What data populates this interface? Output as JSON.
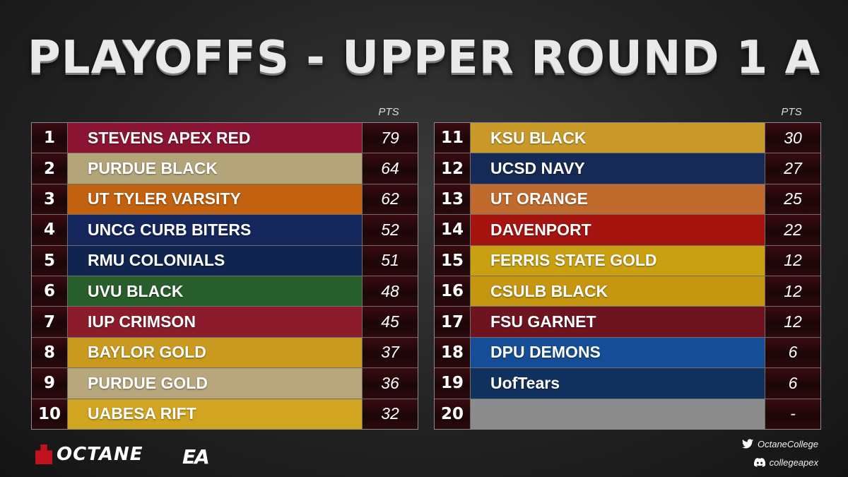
{
  "title": "PLAYOFFS - UPPER ROUND 1 A",
  "pts_label": "PTS",
  "left_table": [
    {
      "rank": "1",
      "team": "STEVENS APEX RED",
      "pts": "79",
      "color": "#8b1432"
    },
    {
      "rank": "2",
      "team": "PURDUE BLACK",
      "pts": "64",
      "color": "#b3a47a"
    },
    {
      "rank": "3",
      "team": "UT TYLER VARSITY",
      "pts": "62",
      "color": "#c2610f"
    },
    {
      "rank": "4",
      "team": "UNCG CURB BITERS",
      "pts": "52",
      "color": "#14265c"
    },
    {
      "rank": "5",
      "team": "RMU COLONIALS",
      "pts": "51",
      "color": "#10244f"
    },
    {
      "rank": "6",
      "team": "UVU BLACK",
      "pts": "48",
      "color": "#285e2b"
    },
    {
      "rank": "7",
      "team": "IUP CRIMSON",
      "pts": "45",
      "color": "#8c1c2c"
    },
    {
      "rank": "8",
      "team": "BAYLOR GOLD",
      "pts": "37",
      "color": "#c99a1f"
    },
    {
      "rank": "9",
      "team": "PURDUE GOLD",
      "pts": "36",
      "color": "#b8a77c"
    },
    {
      "rank": "10",
      "team": "UABESA RIFT",
      "pts": "32",
      "color": "#d2a520"
    }
  ],
  "right_table": [
    {
      "rank": "11",
      "team": "KSU BLACK",
      "pts": "30",
      "color": "#c99a2a"
    },
    {
      "rank": "12",
      "team": "UCSD NAVY",
      "pts": "27",
      "color": "#152b55"
    },
    {
      "rank": "13",
      "team": "UT ORANGE",
      "pts": "25",
      "color": "#c06b2d"
    },
    {
      "rank": "14",
      "team": "DAVENPORT",
      "pts": "22",
      "color": "#a5140f"
    },
    {
      "rank": "15",
      "team": "FERRIS STATE GOLD",
      "pts": "12",
      "color": "#c9a011"
    },
    {
      "rank": "16",
      "team": "CSULB BLACK",
      "pts": "12",
      "color": "#c5960f"
    },
    {
      "rank": "17",
      "team": "FSU GARNET",
      "pts": "12",
      "color": "#6e1421"
    },
    {
      "rank": "18",
      "team": "DPU DEMONS",
      "pts": "6",
      "color": "#154e96"
    },
    {
      "rank": "19",
      "team": "UofTears",
      "pts": "6",
      "color": "#10305e"
    },
    {
      "rank": "20",
      "team": "",
      "pts": "-",
      "color": "#8c8c8c"
    }
  ],
  "footer": {
    "brand": "OCTANE",
    "partner": "EA",
    "twitter_handle": "OctaneCollege",
    "discord_handle": "collegeapex"
  },
  "icons": {
    "twitter": "twitter-icon",
    "discord": "discord-icon"
  }
}
